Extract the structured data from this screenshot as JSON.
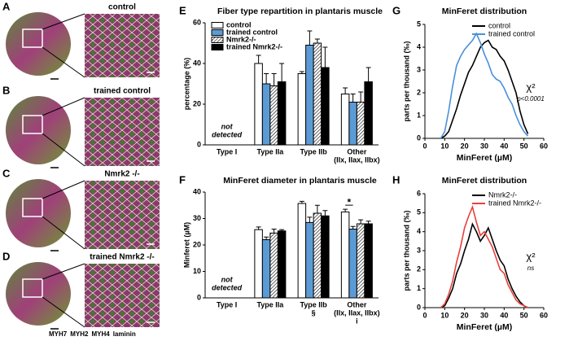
{
  "image_panels": [
    {
      "panel": "A",
      "caption": "control"
    },
    {
      "panel": "B",
      "caption": "trained control"
    },
    {
      "panel": "C",
      "caption": "Nmrk2 -/-"
    },
    {
      "panel": "D",
      "caption": "trained Nmrk2 -/-"
    }
  ],
  "stain_legend": [
    {
      "name": "MYH7",
      "color": "#3355ff"
    },
    {
      "name": "MYH2",
      "color": "#ff2222"
    },
    {
      "name": "MYH4",
      "color": "#33cc33"
    },
    {
      "name": "laminin",
      "color": "#ff44ff"
    }
  ],
  "chart_data": [
    {
      "type": "bar",
      "panel": "E",
      "title": "Fiber type repartition in plantaris muscle",
      "y_label": "percentage (%)",
      "categories": [
        "Type I",
        "Type IIa",
        "Type IIb",
        "Other"
      ],
      "category_sublines": [
        [],
        [],
        [],
        [
          "(IIx, IIax, IIbx)"
        ]
      ],
      "annotation_lines": [
        "not",
        "detected"
      ],
      "series": [
        {
          "name": "control",
          "color": "#ffffff",
          "values": [
            null,
            40,
            35,
            25
          ],
          "errors": [
            null,
            4,
            1,
            3
          ]
        },
        {
          "name": "trained control",
          "color": "#5b9bd5",
          "values": [
            null,
            30,
            49,
            21
          ],
          "errors": [
            null,
            5,
            7,
            4
          ]
        },
        {
          "name": "Nmrk2-/-",
          "color": "#ffffff",
          "hatch": true,
          "values": [
            null,
            29,
            50,
            21
          ],
          "errors": [
            null,
            6,
            2,
            5
          ]
        },
        {
          "name": "trained Nmrk2-/-",
          "color": "#000000",
          "values": [
            null,
            31,
            38,
            31
          ],
          "errors": [
            null,
            9,
            10,
            7
          ]
        }
      ],
      "ylim": [
        0,
        60
      ],
      "yticks": [
        0,
        20,
        40,
        60
      ],
      "legend": "top-left"
    },
    {
      "type": "bar",
      "panel": "F",
      "title": "MinFeret diameter in plantaris muscle",
      "y_label": "Minferet (µM)",
      "categories": [
        "Type I",
        "Type IIa",
        "Type IIb",
        "Other"
      ],
      "category_sublines": [
        [],
        [],
        [
          "§"
        ],
        [
          "(IIx, IIax, IIbx)",
          "i"
        ]
      ],
      "annotation_lines": [
        "not",
        "detected"
      ],
      "significance": [
        {
          "category": "Other",
          "text": "*"
        }
      ],
      "series": [
        {
          "name": "control",
          "color": "#ffffff",
          "values": [
            null,
            25.8,
            35.7,
            32.5
          ],
          "errors": [
            null,
            1,
            0.8,
            1
          ]
        },
        {
          "name": "trained control",
          "color": "#5b9bd5",
          "values": [
            null,
            22,
            28.5,
            26
          ],
          "errors": [
            null,
            1,
            2,
            1
          ]
        },
        {
          "name": "Nmrk2-/-",
          "color": "#ffffff",
          "hatch": true,
          "values": [
            null,
            24.5,
            32,
            28
          ],
          "errors": [
            null,
            1.5,
            3,
            1.5
          ]
        },
        {
          "name": "trained Nmrk2-/-",
          "color": "#000000",
          "values": [
            null,
            25.3,
            31,
            28
          ],
          "errors": [
            null,
            0.5,
            2,
            1
          ]
        }
      ],
      "ylim": [
        0,
        40
      ],
      "yticks": [
        0,
        10,
        20,
        30,
        40
      ]
    },
    {
      "type": "line",
      "panel": "G",
      "title": "MinFeret distribution",
      "x_label": "MinFeret (µM)",
      "y_label": "parts per thousand (‰)",
      "x": [
        8,
        10,
        12,
        14,
        16,
        18,
        20,
        22,
        24,
        26,
        28,
        30,
        32,
        34,
        36,
        38,
        40,
        42,
        44,
        46,
        48,
        50,
        52
      ],
      "series": [
        {
          "name": "control",
          "color": "#000000",
          "values": [
            0,
            0.1,
            0.3,
            0.8,
            1.3,
            1.9,
            2.4,
            2.9,
            3.2,
            3.6,
            4.0,
            4.2,
            4.3,
            4.0,
            3.9,
            3.6,
            3.4,
            3.0,
            2.5,
            2.0,
            1.2,
            0.6,
            0.2
          ]
        },
        {
          "name": "trained control",
          "color": "#4a90d9",
          "values": [
            0,
            0.3,
            1.2,
            2.3,
            3.2,
            3.6,
            3.9,
            4.1,
            4.3,
            4.6,
            4.2,
            3.7,
            3.3,
            2.8,
            2.6,
            2.5,
            2.2,
            1.8,
            1.5,
            1.0,
            0.6,
            0.3,
            0.1
          ]
        }
      ],
      "stat_label": "χ²",
      "stat_note": "p<0.0001",
      "xlim": [
        0,
        60
      ],
      "xticks": [
        0,
        10,
        20,
        30,
        40,
        50,
        60
      ],
      "ylim": [
        0,
        5
      ],
      "yticks": [
        0,
        1,
        2,
        3,
        4,
        5
      ],
      "legend": "top-right"
    },
    {
      "type": "line",
      "panel": "H",
      "title": "MinFeret distribution",
      "x_label": "MinFeret (µM)",
      "y_label": "parts per thousand (‰)",
      "x": [
        8,
        10,
        12,
        14,
        16,
        18,
        20,
        22,
        24,
        26,
        28,
        30,
        32,
        34,
        36,
        38,
        40,
        42,
        44,
        46,
        48,
        50,
        52
      ],
      "series": [
        {
          "name": "Nmrk2-/-",
          "color": "#000000",
          "values": [
            0,
            0.1,
            0.5,
            1.0,
            1.8,
            2.3,
            3.0,
            3.6,
            4.4,
            4.0,
            3.5,
            3.8,
            4.2,
            3.6,
            3.0,
            2.5,
            2.2,
            1.5,
            1.0,
            0.6,
            0.3,
            0.1,
            0
          ]
        },
        {
          "name": "trained Nmrk2-/-",
          "color": "#e8413c",
          "values": [
            0,
            0.2,
            0.7,
            1.4,
            2.4,
            3.2,
            4.2,
            4.8,
            5.3,
            4.5,
            3.8,
            4.0,
            3.6,
            3.2,
            2.6,
            2.0,
            1.8,
            1.2,
            0.8,
            0.4,
            0.2,
            0.1,
            0
          ]
        }
      ],
      "stat_label": "χ²",
      "stat_note": "ns",
      "xlim": [
        0,
        60
      ],
      "xticks": [
        0,
        10,
        20,
        30,
        40,
        50,
        60
      ],
      "ylim": [
        0,
        6
      ],
      "yticks": [
        0,
        1,
        2,
        3,
        4,
        5,
        6
      ],
      "legend": "top-right"
    }
  ]
}
